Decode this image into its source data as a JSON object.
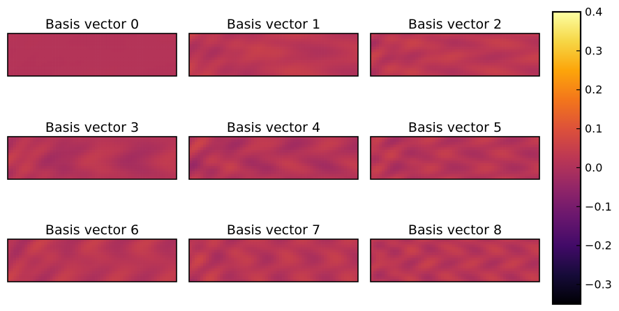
{
  "chart_data": {
    "type": "heatmap",
    "panels": [
      {
        "title": "Basis vector 0",
        "mean": 0.01,
        "amplitude": 0.002,
        "seed": 0
      },
      {
        "title": "Basis vector 1",
        "mean": 0.025,
        "amplitude": 0.03,
        "seed": 1
      },
      {
        "title": "Basis vector 2",
        "mean": 0.025,
        "amplitude": 0.03,
        "seed": 2
      },
      {
        "title": "Basis vector 3",
        "mean": 0.01,
        "amplitude": 0.035,
        "seed": 3
      },
      {
        "title": "Basis vector 4",
        "mean": 0.01,
        "amplitude": 0.04,
        "seed": 4
      },
      {
        "title": "Basis vector 5",
        "mean": 0.015,
        "amplitude": 0.035,
        "seed": 5
      },
      {
        "title": "Basis vector 6",
        "mean": 0.02,
        "amplitude": 0.035,
        "seed": 6
      },
      {
        "title": "Basis vector 7",
        "mean": 0.02,
        "amplitude": 0.035,
        "seed": 7
      },
      {
        "title": "Basis vector 8",
        "mean": 0.02,
        "amplitude": 0.035,
        "seed": 8
      }
    ],
    "colormap": "inferno",
    "colorbar": {
      "vmin": -0.35,
      "vmax": 0.4,
      "ticks": [
        0.4,
        0.3,
        0.2,
        0.1,
        0.0,
        -0.1,
        -0.2,
        -0.3
      ],
      "tick_labels": [
        "0.4",
        "0.3",
        "0.2",
        "0.1",
        "0.0",
        "−0.1",
        "−0.2",
        "−0.3"
      ]
    },
    "grid": false,
    "axes_ticks": false
  }
}
